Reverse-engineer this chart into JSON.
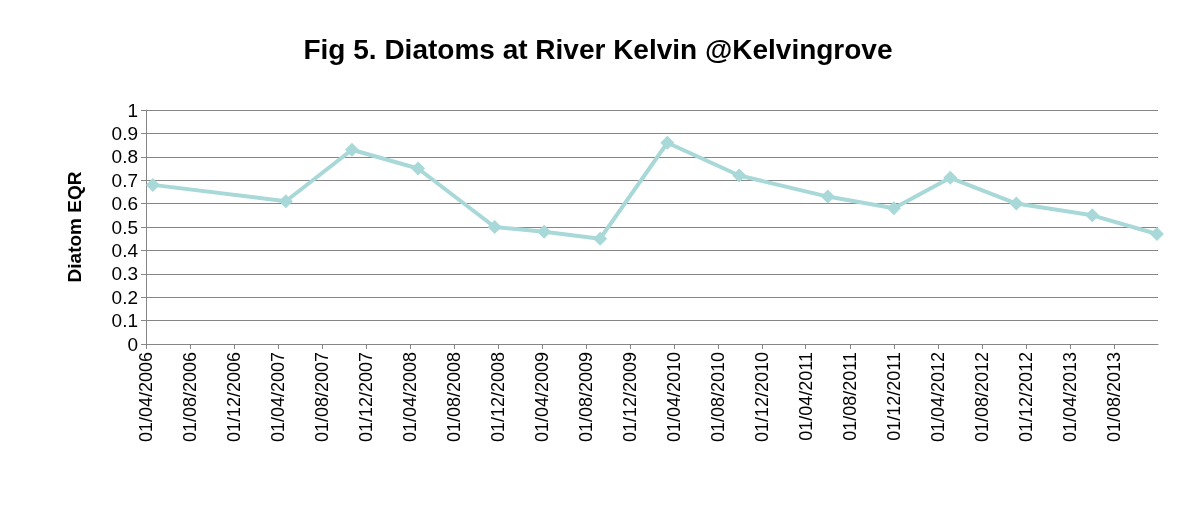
{
  "chart_data": {
    "type": "line",
    "title": "Fig 5. Diatoms at River Kelvin @Kelvingrove",
    "ylabel": "Diatom EQR",
    "x": [
      "2006-04-20",
      "2007-04-23",
      "2007-10-23",
      "2008-04-23",
      "2008-11-21",
      "2009-04-07",
      "2009-09-09",
      "2010-03-14",
      "2010-09-29",
      "2011-06-01",
      "2011-12-01",
      "2012-05-05",
      "2012-11-04",
      "2013-06-02",
      "2013-11-28"
    ],
    "series": [
      {
        "color": "#a8d8d8",
        "values": [
          0.68,
          0.61,
          0.83,
          0.75,
          0.5,
          0.48,
          0.45,
          0.86,
          0.72,
          0.63,
          0.58,
          0.71,
          0.6,
          0.55,
          0.47
        ]
      }
    ],
    "xlim": [
      "2006-04-01",
      "2013-12-01"
    ],
    "xticks": [
      {
        "value": "2006-04-01",
        "label": "01/04/2006"
      },
      {
        "value": "2006-08-01",
        "label": "01/08/2006"
      },
      {
        "value": "2006-12-01",
        "label": "01/12/2006"
      },
      {
        "value": "2007-04-01",
        "label": "01/04/2007"
      },
      {
        "value": "2007-08-01",
        "label": "01/08/2007"
      },
      {
        "value": "2007-12-01",
        "label": "01/12/2007"
      },
      {
        "value": "2008-04-01",
        "label": "01/04/2008"
      },
      {
        "value": "2008-08-01",
        "label": "01/08/2008"
      },
      {
        "value": "2008-12-01",
        "label": "01/12/2008"
      },
      {
        "value": "2009-04-01",
        "label": "01/04/2009"
      },
      {
        "value": "2009-08-01",
        "label": "01/08/2009"
      },
      {
        "value": "2009-12-01",
        "label": "01/12/2009"
      },
      {
        "value": "2010-04-01",
        "label": "01/04/2010"
      },
      {
        "value": "2010-08-01",
        "label": "01/08/2010"
      },
      {
        "value": "2010-12-01",
        "label": "01/12/2010"
      },
      {
        "value": "2011-04-01",
        "label": "01/04/2011"
      },
      {
        "value": "2011-08-01",
        "label": "01/08/2011"
      },
      {
        "value": "2011-12-01",
        "label": "01/12/2011"
      },
      {
        "value": "2012-04-01",
        "label": "01/04/2012"
      },
      {
        "value": "2012-08-01",
        "label": "01/08/2012"
      },
      {
        "value": "2012-12-01",
        "label": "01/12/2012"
      },
      {
        "value": "2013-04-01",
        "label": "01/04/2013"
      },
      {
        "value": "2013-08-01",
        "label": "01/08/2013"
      }
    ],
    "ylim": [
      0,
      1
    ],
    "yticks": [
      0,
      0.1,
      0.2,
      0.3,
      0.4,
      0.5,
      0.6,
      0.7,
      0.8,
      0.9,
      1
    ],
    "grid": "y",
    "marker": "diamond",
    "line_style": "solid"
  }
}
